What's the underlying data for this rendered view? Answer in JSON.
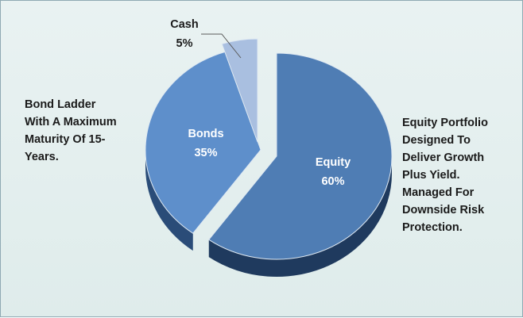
{
  "chart_data": {
    "type": "pie",
    "style": "3d-exploded",
    "slices": [
      {
        "label": "Equity",
        "value": 60,
        "value_label": "60%",
        "color": "#4f7db4",
        "side_color": "#1f3a5e",
        "label_color": "#ffffff"
      },
      {
        "label": "Bonds",
        "value": 35,
        "value_label": "35%",
        "color": "#5e8fcb",
        "side_color": "#2a4c78",
        "label_color": "#ffffff"
      },
      {
        "label": "Cash",
        "value": 5,
        "value_label": "5%",
        "color": "#a9bfe0",
        "side_color": "#6f86a8",
        "label_color": "#1a1a1a"
      }
    ]
  },
  "annotations": {
    "bonds_note": "Bond Ladder\nWith A Maximum\nMaturity Of 15-\nYears.",
    "equity_note": "Equity Portfolio\nDesigned To\nDeliver Growth\nPlus Yield.\nManaged For\nDownside Risk\nProtection."
  },
  "colors": {
    "background": "#e3eeed",
    "border": "#8fa9b3"
  }
}
